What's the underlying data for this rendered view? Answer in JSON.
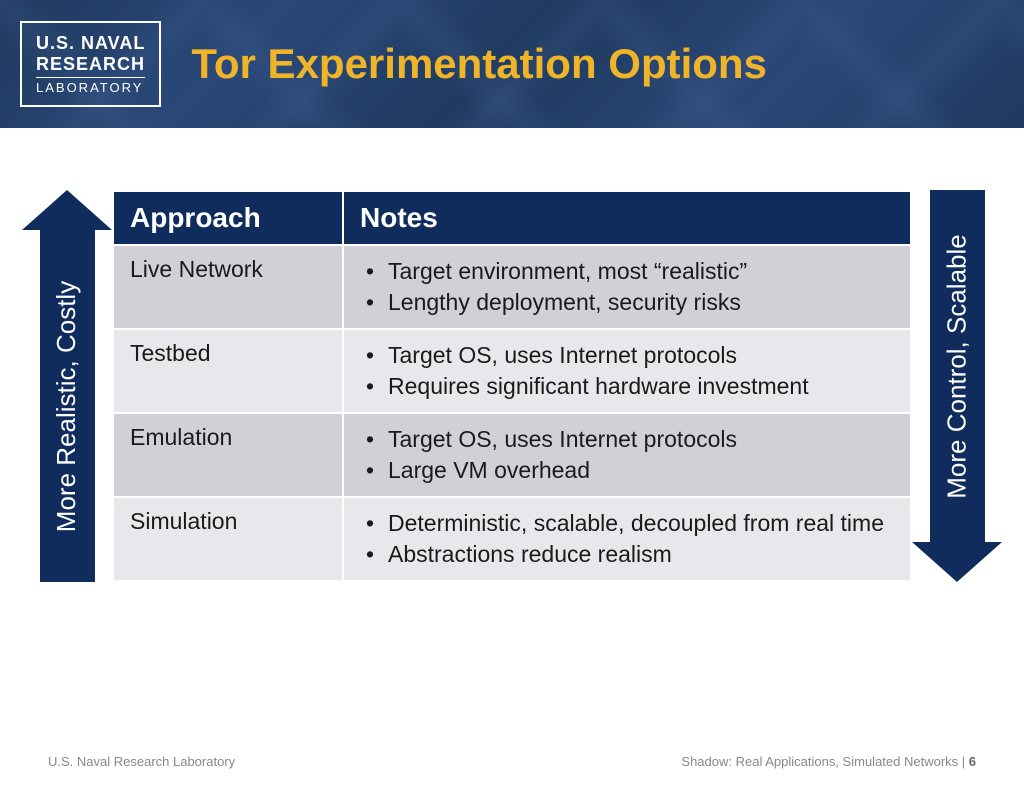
{
  "header": {
    "logo": {
      "line1": "U.S. NAVAL",
      "line2": "RESEARCH",
      "line3": "LABORATORY"
    },
    "title": "Tor Experimentation Options",
    "title_color": "#f0b429",
    "bg_color": "#1e3a5f"
  },
  "arrows": {
    "left_label": "More Realistic, Costly",
    "right_label": "More Control, Scalable",
    "color": "#0f2c5c",
    "text_color": "#ffffff"
  },
  "table": {
    "header_bg": "#0f2c5c",
    "header_fg": "#ffffff",
    "row_odd_bg": "#d0d0d6",
    "row_even_bg": "#e8e8ec",
    "columns": [
      "Approach",
      "Notes"
    ],
    "rows": [
      {
        "approach": "Live Network",
        "notes": [
          "Target environment, most “realistic”",
          "Lengthy deployment, security risks"
        ]
      },
      {
        "approach": "Testbed",
        "notes": [
          "Target OS, uses Internet protocols",
          "Requires significant hardware investment"
        ]
      },
      {
        "approach": "Emulation",
        "notes": [
          "Target OS, uses Internet protocols",
          "Large VM overhead"
        ]
      },
      {
        "approach": "Simulation",
        "notes": [
          "Deterministic, scalable, decoupled from real time",
          "Abstractions reduce realism"
        ]
      }
    ]
  },
  "footer": {
    "left": "U.S. Naval Research Laboratory",
    "right_prefix": "Shadow: Real Applications, Simulated Networks |  ",
    "page": "6"
  }
}
